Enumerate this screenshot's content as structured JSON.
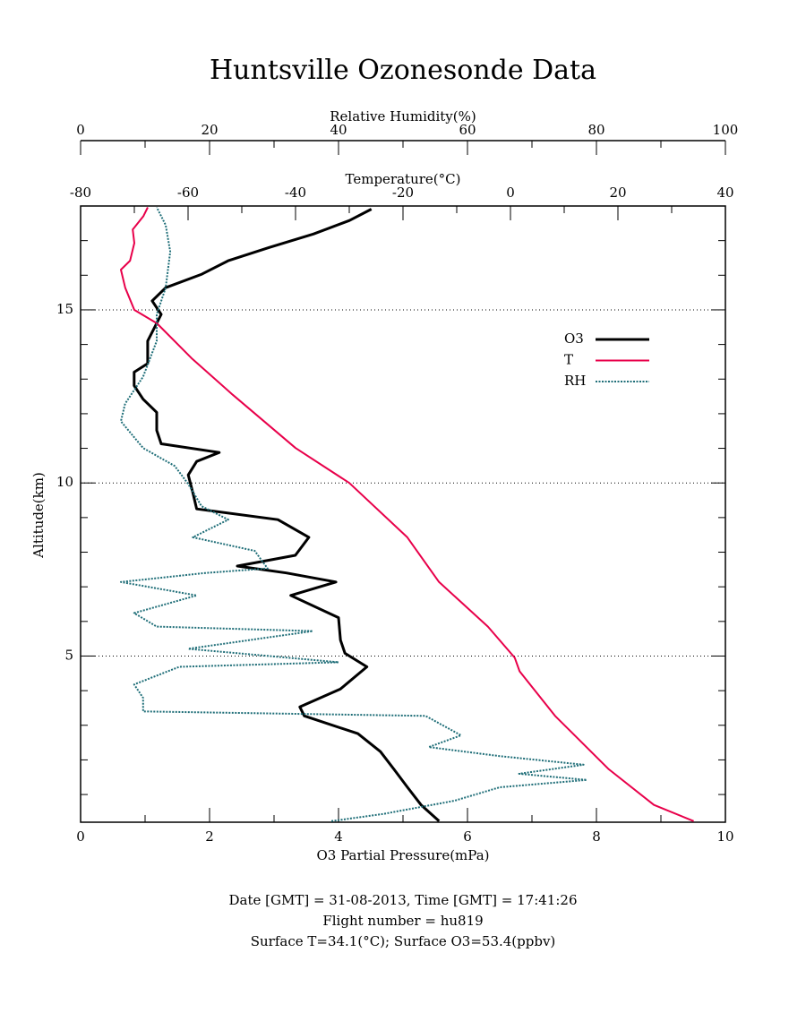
{
  "chart_data": {
    "type": "profile",
    "title": "Huntsville Ozonesonde Data",
    "ylabel": "Altitude(km)",
    "ylim": [
      0.2,
      18
    ],
    "yticks": [
      5,
      10,
      15
    ],
    "yminorticks": [
      1,
      2,
      3,
      4,
      6,
      7,
      8,
      9,
      11,
      12,
      13,
      14,
      16,
      17
    ],
    "grid": true,
    "legend": "right",
    "axes": {
      "o3": {
        "label": "O3 Partial Pressure(mPa)",
        "lim": [
          0,
          10
        ],
        "ticks": [
          0,
          2,
          4,
          6,
          8,
          10
        ],
        "minorticks": [
          1,
          3,
          5,
          7,
          9
        ]
      },
      "t": {
        "label": "Temperature(°C)",
        "lim": [
          -80,
          40
        ],
        "ticks": [
          -80,
          -60,
          -40,
          -20,
          0,
          20,
          40
        ],
        "minorticks": [
          -70,
          -50,
          -30,
          -10,
          10,
          30
        ]
      },
      "rh": {
        "label": "Relative Humidity(%)",
        "lim": [
          0,
          100
        ],
        "ticks": [
          0,
          20,
          40,
          60,
          80,
          100
        ],
        "minorticks": [
          10,
          30,
          50,
          70,
          90
        ]
      }
    },
    "series": [
      {
        "name": "O3",
        "color": "#000000",
        "axis": "o3",
        "altitude": [
          0.23,
          0.7,
          1.21,
          1.73,
          2.24,
          2.76,
          3.27,
          3.53,
          4.05,
          4.69,
          5.08,
          5.46,
          6.11,
          6.75,
          7.14,
          7.4,
          7.6,
          7.91,
          8.43,
          8.94,
          9.25,
          9.72,
          10.23,
          10.62,
          10.88,
          11.13,
          11.52,
          12.04,
          12.42,
          12.81,
          13.2,
          13.45,
          14.1,
          14.87,
          15.26,
          15.64,
          16.03,
          16.42,
          16.8,
          17.19,
          17.58,
          17.91
        ],
        "values": [
          5.56,
          5.28,
          5.07,
          4.86,
          4.65,
          4.3,
          3.47,
          3.4,
          4.03,
          4.44,
          4.1,
          4.03,
          4.0,
          3.26,
          3.96,
          3.19,
          2.43,
          3.33,
          3.54,
          3.06,
          1.8,
          1.74,
          1.67,
          1.8,
          2.15,
          1.25,
          1.18,
          1.18,
          0.97,
          0.83,
          0.83,
          1.04,
          1.04,
          1.25,
          1.11,
          1.32,
          1.88,
          2.29,
          2.92,
          3.61,
          4.17,
          4.51
        ]
      },
      {
        "name": "T",
        "color": "#e8004a",
        "axis": "t",
        "altitude": [
          0.23,
          0.7,
          1.73,
          3.27,
          4.56,
          4.95,
          5.85,
          7.14,
          8.43,
          10,
          11.01,
          12.55,
          13.58,
          14.61,
          15,
          15.64,
          16.16,
          16.42,
          16.93,
          17.32,
          17.71,
          17.96
        ],
        "values": [
          34.1,
          26.7,
          18.3,
          8.3,
          1.7,
          0.8,
          -4.2,
          -13.3,
          -19.2,
          -30,
          -40,
          -51.7,
          -59.2,
          -65.8,
          -70,
          -71.7,
          -72.5,
          -70.8,
          -70,
          -70.3,
          -68.3,
          -67.5
        ]
      },
      {
        "name": "RH",
        "color": "#1f6e78",
        "axis": "rh",
        "altitude": [
          0.23,
          0.44,
          0.82,
          1.21,
          1.42,
          1.6,
          1.86,
          2.11,
          2.37,
          2.71,
          3.27,
          3.4,
          3.79,
          4.18,
          4.69,
          4.82,
          5.21,
          5.72,
          5.85,
          6.24,
          6.75,
          7.14,
          7.4,
          7.53,
          8.04,
          8.43,
          8.94,
          9.33,
          9.97,
          10.49,
          11.01,
          11.78,
          12.29,
          13.07,
          14.1,
          14.87,
          15.64,
          16.68,
          17.45,
          17.96
        ],
        "values": [
          38.9,
          47,
          58,
          65,
          78.5,
          68,
          78,
          65,
          54,
          59,
          53.5,
          9.7,
          9.7,
          8.3,
          15.3,
          40,
          16.7,
          36,
          11.8,
          8.3,
          18,
          6.25,
          19.4,
          29,
          27,
          17.4,
          22.9,
          18.75,
          16.7,
          14.6,
          9.7,
          6.25,
          6.9,
          9.7,
          11.8,
          11.8,
          13.2,
          13.9,
          13.2,
          11.8
        ]
      }
    ],
    "notes": [
      "Date [GMT] = 31-08-2013,  Time [GMT] = 17:41:26",
      "Flight number = hu819",
      "Surface T=34.1(°C); Surface O3=53.4(ppbv)"
    ]
  }
}
